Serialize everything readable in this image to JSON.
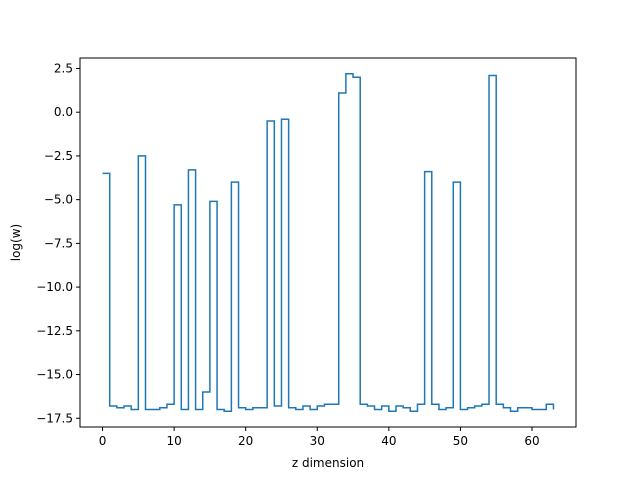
{
  "chart_data": {
    "type": "line",
    "drawstyle": "steps-post",
    "title": "",
    "xlabel": "z dimension",
    "ylabel": "log(w)",
    "xlim": [
      -3.15,
      66.15
    ],
    "ylim": [
      -18.0,
      3.1
    ],
    "xticks": [
      0,
      10,
      20,
      30,
      40,
      50,
      60
    ],
    "xtick_labels": [
      "0",
      "10",
      "20",
      "30",
      "40",
      "50",
      "60"
    ],
    "yticks": [
      -17.5,
      -15.0,
      -12.5,
      -10.0,
      -7.5,
      -5.0,
      -2.5,
      0.0,
      2.5
    ],
    "ytick_labels": [
      "−17.5",
      "−15.0",
      "−12.5",
      "−10.0",
      "−7.5",
      "−5.0",
      "−2.5",
      "0.0",
      "2.5"
    ],
    "grid": false,
    "series": [
      {
        "color": "#1f77b4",
        "x": [
          0,
          1,
          2,
          3,
          4,
          5,
          6,
          7,
          8,
          9,
          10,
          11,
          12,
          13,
          14,
          15,
          16,
          17,
          18,
          19,
          20,
          21,
          22,
          23,
          24,
          25,
          26,
          27,
          28,
          29,
          30,
          31,
          32,
          33,
          34,
          35,
          36,
          37,
          38,
          39,
          40,
          41,
          42,
          43,
          44,
          45,
          46,
          47,
          48,
          49,
          50,
          51,
          52,
          53,
          54,
          55,
          56,
          57,
          58,
          59,
          60,
          61,
          62,
          63
        ],
        "values": [
          -3.5,
          -16.8,
          -16.9,
          -16.8,
          -17.0,
          -2.5,
          -17.0,
          -17.0,
          -16.9,
          -16.7,
          -5.3,
          -17.0,
          -3.3,
          -17.0,
          -16.0,
          -5.1,
          -17.0,
          -17.1,
          -4.0,
          -16.9,
          -17.0,
          -16.9,
          -16.9,
          -0.5,
          -16.8,
          -0.4,
          -16.9,
          -17.0,
          -16.8,
          -17.0,
          -16.8,
          -16.7,
          -16.7,
          1.1,
          2.2,
          2.0,
          -16.7,
          -16.8,
          -17.0,
          -16.8,
          -17.1,
          -16.8,
          -16.9,
          -17.1,
          -16.7,
          -3.4,
          -16.7,
          -17.0,
          -16.9,
          -4.0,
          -17.0,
          -16.9,
          -16.8,
          -16.7,
          2.1,
          -16.7,
          -16.9,
          -17.1,
          -16.9,
          -16.9,
          -17.0,
          -17.0,
          -16.7,
          -17.0
        ]
      }
    ]
  }
}
